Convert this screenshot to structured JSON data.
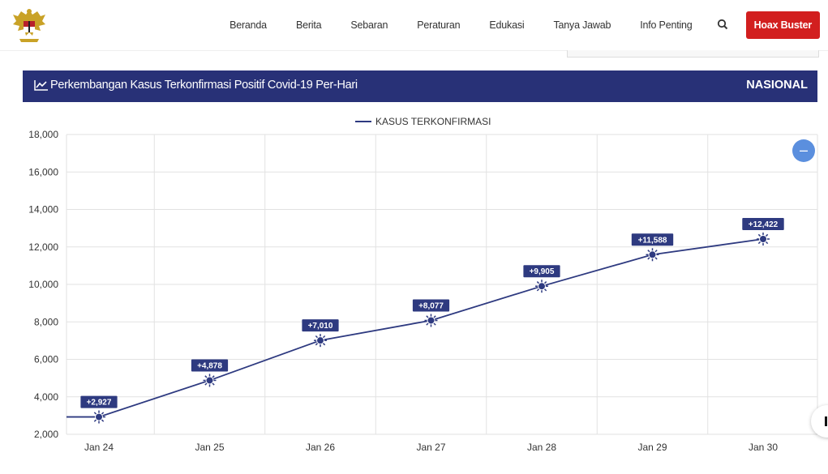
{
  "nav": {
    "items": [
      "Beranda",
      "Berita",
      "Sebaran",
      "Peraturan",
      "Edukasi",
      "Tanya Jawab",
      "Info Penting"
    ],
    "hoax_label": "Hoax Buster"
  },
  "header": {
    "title": "Perkembangan Kasus Terkonfirmasi Positif Covid-19 Per-Hari",
    "region": "NASIONAL"
  },
  "colors": {
    "header_bg": "#283177",
    "line": "#2e3a80",
    "hoax": "#d21f1f",
    "zoom_button": "#5b8fde"
  },
  "chart_data": {
    "type": "line",
    "categories": [
      "Jan 24",
      "Jan 25",
      "Jan 26",
      "Jan 27",
      "Jan 28",
      "Jan 29",
      "Jan 30"
    ],
    "series": [
      {
        "name": "KASUS TERKONFIRMASI",
        "values": [
          2927,
          4878,
          7010,
          8077,
          9905,
          11588,
          12422
        ],
        "labels": [
          "+2,927",
          "+4,878",
          "+7,010",
          "+8,077",
          "+9,905",
          "+11,588",
          "+12,422"
        ]
      }
    ],
    "ylim": [
      2000,
      18000
    ],
    "yticks": [
      2000,
      4000,
      6000,
      8000,
      10000,
      12000,
      14000,
      16000,
      18000
    ],
    "ytick_labels": [
      "2,000",
      "4,000",
      "6,000",
      "8,000",
      "10,000",
      "12,000",
      "14,000",
      "16,000",
      "18,000"
    ],
    "grid": true,
    "legend": "top-center"
  }
}
